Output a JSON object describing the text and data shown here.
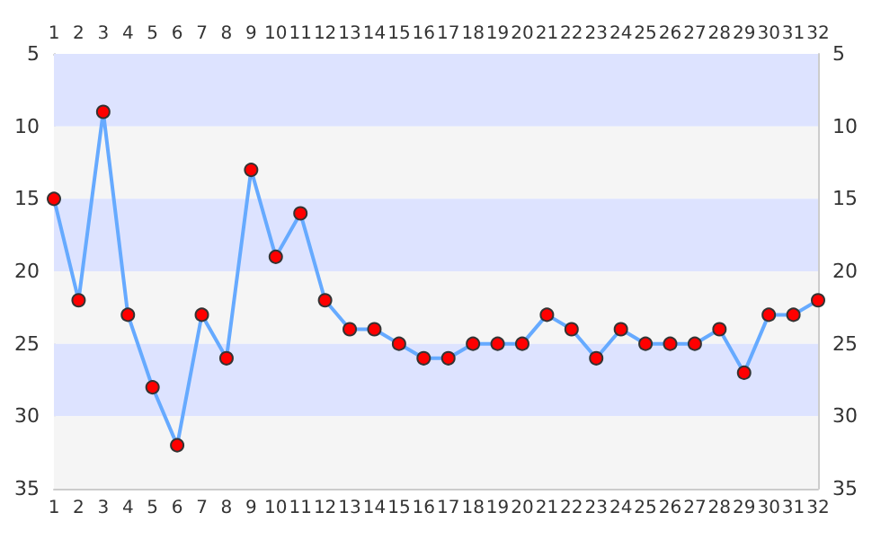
{
  "chart_data": {
    "type": "line",
    "x": [
      1,
      2,
      3,
      4,
      5,
      6,
      7,
      8,
      9,
      10,
      11,
      12,
      13,
      14,
      15,
      16,
      17,
      18,
      19,
      20,
      21,
      22,
      23,
      24,
      25,
      26,
      27,
      28,
      29,
      30,
      31,
      32
    ],
    "series": [
      {
        "color": "#66aaff",
        "colors": [
          "#ff0000",
          "#ff0000",
          "#ff0000",
          "#ff0000",
          "#ff0000",
          "#ff0000",
          "#ff0000",
          "#ff0000",
          "#ff0000",
          "#ff0000",
          "#ff0000",
          "#ff0000",
          "#ff0000",
          "#ff0000",
          "#ff0000",
          "#ff0000",
          "#ff0000",
          "#ff0000",
          "#ff0000",
          "#ff0000",
          "#ff0000",
          "#ff0000",
          "#ff0000",
          "#ff0000",
          "#ff0000",
          "#ff0000",
          "#ff0000",
          "#ff0000",
          "#ff0000",
          "#ff0000",
          "#ff0000",
          "#ff0000"
        ],
        "values": [
          15,
          22,
          9,
          23,
          28,
          32,
          23,
          26,
          13,
          19,
          16,
          22,
          24,
          24,
          25,
          26,
          26,
          25,
          25,
          25,
          23,
          24,
          26,
          24,
          25,
          25,
          25,
          24,
          27,
          23,
          23,
          22
        ]
      }
    ],
    "xlim": [
      1,
      32
    ],
    "xticks": [
      1,
      2,
      3,
      4,
      5,
      6,
      7,
      8,
      9,
      10,
      11,
      12,
      13,
      14,
      15,
      16,
      17,
      18,
      19,
      20,
      21,
      22,
      23,
      24,
      25,
      26,
      27,
      28,
      29,
      30,
      31,
      32
    ],
    "x2lim": [
      1,
      32
    ],
    "x2ticks": [
      1,
      2,
      3,
      4,
      5,
      6,
      7,
      8,
      9,
      10,
      11,
      12,
      13,
      14,
      15,
      16,
      17,
      18,
      19,
      20,
      21,
      22,
      23,
      24,
      25,
      26,
      27,
      28,
      29,
      30,
      31,
      32
    ],
    "ylim": [
      35,
      5
    ],
    "yticks": [
      5,
      10,
      15,
      20,
      25,
      30,
      35
    ],
    "y2lim": [
      35,
      5
    ],
    "y2ticks": [
      5,
      10,
      15,
      20,
      25,
      30,
      35
    ],
    "bands": [
      {
        "axis": "y",
        "from": 5,
        "to": 10,
        "color": "#dde3ff"
      },
      {
        "axis": "y",
        "from": 10,
        "to": 15,
        "color": "#f5f5f5"
      },
      {
        "axis": "y",
        "from": 15,
        "to": 20,
        "color": "#dde3ff"
      },
      {
        "axis": "y",
        "from": 20,
        "to": 25,
        "color": "#f5f5f5"
      },
      {
        "axis": "y",
        "from": 25,
        "to": 30,
        "color": "#dde3ff"
      },
      {
        "axis": "y",
        "from": 30,
        "to": 35,
        "color": "#f5f5f5"
      }
    ],
    "grid": false,
    "marker": "circle",
    "line_style": "solid"
  }
}
